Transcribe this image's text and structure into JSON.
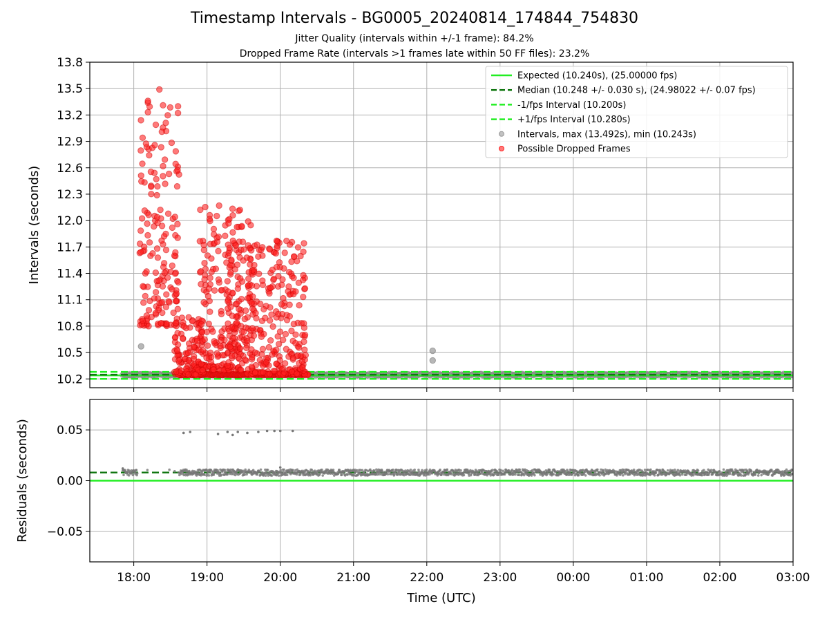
{
  "chart_data": {
    "type": "scatter",
    "title": "Timestamp Intervals - BG0005_20240814_174844_754830",
    "subtitle_lines": [
      "Jitter Quality (intervals within +/-1 frame): 84.2%",
      "Dropped Frame Rate (intervals >1 frames late within 50 FF files): 23.2%"
    ],
    "xlabel": "Time (UTC)",
    "x_ticks": [
      "18:00",
      "19:00",
      "20:00",
      "21:00",
      "22:00",
      "23:00",
      "00:00",
      "01:00",
      "02:00",
      "03:00"
    ],
    "x_range_hours": [
      17.4,
      27.0
    ],
    "grid": true,
    "legend_position": "top-right",
    "panels": [
      {
        "name": "intervals",
        "ylabel": "Intervals (seconds)",
        "ylim": [
          10.1,
          13.8
        ],
        "y_ticks": [
          10.2,
          10.5,
          10.8,
          11.1,
          11.4,
          11.7,
          12.0,
          12.3,
          12.6,
          12.9,
          13.2,
          13.5,
          13.8
        ],
        "reference_lines": [
          {
            "label": "Expected (10.240s), (25.00000 fps)",
            "y": 10.24,
            "color": "#22ee22",
            "style": "solid"
          },
          {
            "label": "Median (10.248 +/- 0.030 s), (24.98022 +/- 0.07 fps)",
            "y": 10.248,
            "color": "#117711",
            "style": "dashed"
          },
          {
            "label": "-1/fps Interval (10.200s)",
            "y": 10.2,
            "color": "#22ee22",
            "style": "dashed"
          },
          {
            "label": "+1/fps Interval (10.280s)",
            "y": 10.28,
            "color": "#22ee22",
            "style": "dashed"
          }
        ],
        "series": [
          {
            "label": "Intervals, max (13.492s), min (10.243s)",
            "color": "#999999",
            "kind": "normal",
            "points": [
              [
                18.1,
                10.57
              ],
              [
                22.08,
                10.52
              ],
              [
                22.08,
                10.41
              ]
            ],
            "baseline_band": {
              "x_start": 17.85,
              "x_end": 27.0,
              "y": 10.248
            }
          },
          {
            "label": "Possible Dropped Frames",
            "color": "#ff2222",
            "kind": "dropped",
            "clusters": [
              {
                "x_start": 18.08,
                "x_end": 18.62,
                "y_min": 10.8,
                "y_max": 13.49
              },
              {
                "x_start": 18.55,
                "x_end": 18.95,
                "y_min": 10.25,
                "y_max": 10.9
              },
              {
                "x_start": 18.88,
                "x_end": 19.45,
                "y_min": 10.3,
                "y_max": 12.17
              },
              {
                "x_start": 19.28,
                "x_end": 19.62,
                "y_min": 10.3,
                "y_max": 12.12
              },
              {
                "x_start": 19.55,
                "x_end": 20.35,
                "y_min": 10.25,
                "y_max": 11.77
              }
            ],
            "floor_band": {
              "x_start": 18.62,
              "x_end": 20.38,
              "y": 10.25
            }
          }
        ]
      },
      {
        "name": "residuals",
        "ylabel": "Residuals (seconds)",
        "ylim": [
          -0.08,
          0.08
        ],
        "y_ticks": [
          0.05,
          0.0,
          -0.05
        ],
        "y_tick_labels": [
          "0.05",
          "0.00",
          "−0.05"
        ],
        "reference_lines": [
          {
            "y": 0.0,
            "color": "#22ee22",
            "style": "solid"
          },
          {
            "y": 0.008,
            "color": "#117711",
            "style": "dashed"
          }
        ],
        "series": [
          {
            "color": "#777777",
            "outliers": [
              [
                17.85,
                0.012
              ],
              [
                18.68,
                0.047
              ],
              [
                18.77,
                0.048
              ],
              [
                19.15,
                0.046
              ],
              [
                19.28,
                0.048
              ],
              [
                19.35,
                0.045
              ],
              [
                19.42,
                0.048
              ],
              [
                19.55,
                0.047
              ],
              [
                19.7,
                0.048
              ],
              [
                19.82,
                0.049
              ],
              [
                19.92,
                0.049
              ],
              [
                20.0,
                0.049
              ],
              [
                20.17,
                0.049
              ],
              [
                20.0,
                0.013
              ]
            ],
            "band": {
              "x_start": 17.85,
              "x_end": 27.0,
              "y_min": 0.005,
              "y_max": 0.011
            }
          }
        ]
      }
    ]
  }
}
